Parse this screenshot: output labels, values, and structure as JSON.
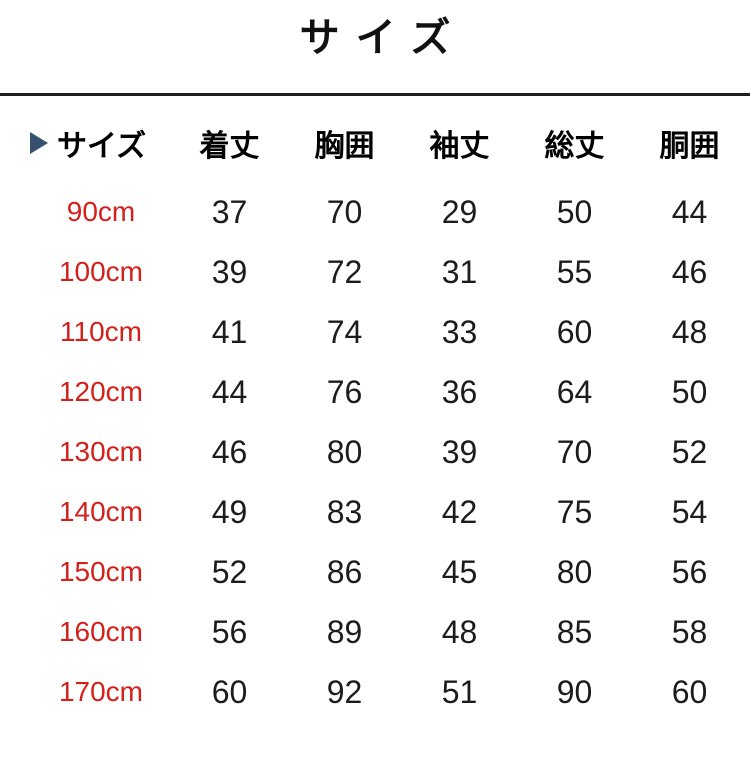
{
  "page": {
    "title": "サイズ",
    "accent_red": "#d3201b",
    "arrow_color": "#35516f",
    "divider_color": "#1f1f1f",
    "text_color": "#1c1c1c"
  },
  "chart_data": {
    "type": "table",
    "title": "サイズ",
    "header": {
      "size_label": "サイズ",
      "measure_columns": [
        "着丈",
        "胸囲",
        "袖丈",
        "総丈",
        "胴囲"
      ]
    },
    "rows": [
      {
        "size": "90cm",
        "values": [
          37,
          70,
          29,
          50,
          44
        ]
      },
      {
        "size": "100cm",
        "values": [
          39,
          72,
          31,
          55,
          46
        ]
      },
      {
        "size": "110cm",
        "values": [
          41,
          74,
          33,
          60,
          48
        ]
      },
      {
        "size": "120cm",
        "values": [
          44,
          76,
          36,
          64,
          50
        ]
      },
      {
        "size": "130cm",
        "values": [
          46,
          80,
          39,
          70,
          52
        ]
      },
      {
        "size": "140cm",
        "values": [
          49,
          83,
          42,
          75,
          54
        ]
      },
      {
        "size": "150cm",
        "values": [
          52,
          86,
          45,
          80,
          56
        ]
      },
      {
        "size": "160cm",
        "values": [
          56,
          89,
          48,
          85,
          58
        ]
      },
      {
        "size": "170cm",
        "values": [
          60,
          92,
          51,
          90,
          60
        ]
      }
    ],
    "units": "cm",
    "layout": {
      "grid": "off",
      "row_label_color": "#d3201b"
    }
  }
}
